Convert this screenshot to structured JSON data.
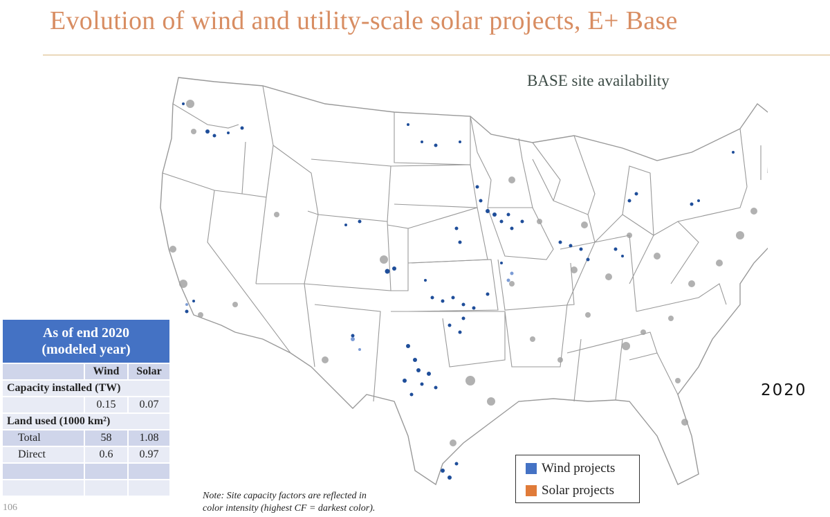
{
  "header": {
    "title": "Evolution of wind and utility-scale solar projects, E+ Base"
  },
  "map": {
    "subtitle": "BASE site availability",
    "year": "2020",
    "colors": {
      "wind": "#4472c4",
      "wind_dark": "#1f4e9a",
      "solar": "#e07b39",
      "urban": "#9e9e9e",
      "border": "#999999"
    }
  },
  "stats_table": {
    "title_line1": "As of end 2020",
    "title_line2": "(modeled year)",
    "col_wind": "Wind",
    "col_solar": "Solar",
    "capacity_header": "Capacity installed (TW)",
    "capacity_wind": "0.15",
    "capacity_solar": "0.07",
    "land_header": "Land used (1000 km²)",
    "total_label": "Total",
    "total_wind": "58",
    "total_solar": "1.08",
    "direct_label": "Direct",
    "direct_wind": "0.6",
    "direct_solar": "0.97"
  },
  "legend": {
    "wind_label": "Wind projects",
    "solar_label": "Solar projects",
    "wind_color": "#4472c4",
    "solar_color": "#e07b39"
  },
  "note": {
    "line1": "Note: Site capacity factors are reflected in",
    "line2": "color intensity (highest CF = darkest color)."
  },
  "footer": {
    "page_number": "106"
  }
}
